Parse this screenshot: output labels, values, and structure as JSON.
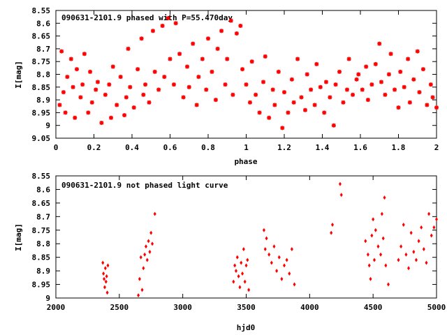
{
  "chart_data": [
    {
      "type": "scatter",
      "title": "090631-2101.9 phased with P=55.470day",
      "xlabel": "phase",
      "ylabel": "I[mag]",
      "xlim": [
        0,
        2
      ],
      "ylim": [
        8.55,
        9.05
      ],
      "y_inverted": true,
      "x_ticks": [
        "0",
        "0.2",
        "0.4",
        "0.6",
        "0.8",
        "1",
        "1.2",
        "1.4",
        "1.6",
        "1.8",
        "2"
      ],
      "y_ticks": [
        "8.55",
        "8.6",
        "8.65",
        "8.7",
        "8.75",
        "8.8",
        "8.85",
        "8.9",
        "8.95",
        "9",
        "9.05"
      ],
      "marker": "asterisk",
      "color": "#ff0000",
      "points": [
        [
          0.02,
          8.92
        ],
        [
          0.03,
          8.71
        ],
        [
          0.04,
          8.87
        ],
        [
          0.05,
          8.95
        ],
        [
          0.06,
          8.81
        ],
        [
          0.08,
          8.74
        ],
        [
          0.09,
          8.85
        ],
        [
          0.1,
          8.97
        ],
        [
          0.11,
          8.78
        ],
        [
          0.13,
          8.89
        ],
        [
          0.14,
          8.84
        ],
        [
          0.15,
          8.72
        ],
        [
          0.17,
          8.95
        ],
        [
          0.18,
          8.79
        ],
        [
          0.19,
          8.91
        ],
        [
          0.21,
          8.86
        ],
        [
          0.22,
          8.83
        ],
        [
          0.24,
          8.99
        ],
        [
          0.26,
          8.88
        ],
        [
          0.28,
          8.84
        ],
        [
          0.29,
          8.97
        ],
        [
          0.3,
          8.77
        ],
        [
          0.32,
          8.92
        ],
        [
          0.34,
          8.81
        ],
        [
          0.36,
          8.96
        ],
        [
          0.37,
          8.89
        ],
        [
          0.38,
          8.7
        ],
        [
          0.39,
          8.85
        ],
        [
          0.41,
          8.93
        ],
        [
          0.43,
          8.78
        ],
        [
          0.45,
          8.66
        ],
        [
          0.46,
          8.88
        ],
        [
          0.47,
          8.84
        ],
        [
          0.49,
          8.91
        ],
        [
          0.51,
          8.63
        ],
        [
          0.52,
          8.79
        ],
        [
          0.54,
          8.86
        ],
        [
          0.56,
          8.61
        ],
        [
          0.57,
          8.81
        ],
        [
          0.59,
          8.58
        ],
        [
          0.6,
          8.74
        ],
        [
          0.62,
          8.84
        ],
        [
          0.63,
          8.6
        ],
        [
          0.65,
          8.72
        ],
        [
          0.67,
          8.89
        ],
        [
          0.69,
          8.77
        ],
        [
          0.7,
          8.85
        ],
        [
          0.72,
          8.68
        ],
        [
          0.74,
          8.92
        ],
        [
          0.75,
          8.81
        ],
        [
          0.77,
          8.74
        ],
        [
          0.79,
          8.86
        ],
        [
          0.8,
          8.66
        ],
        [
          0.82,
          8.79
        ],
        [
          0.84,
          8.9
        ],
        [
          0.85,
          8.7
        ],
        [
          0.87,
          8.63
        ],
        [
          0.89,
          8.84
        ],
        [
          0.9,
          8.74
        ],
        [
          0.92,
          8.59
        ],
        [
          0.93,
          8.88
        ],
        [
          0.95,
          8.64
        ],
        [
          0.97,
          8.61
        ],
        [
          0.98,
          8.78
        ],
        [
          1.0,
          8.84
        ],
        [
          1.02,
          8.91
        ],
        [
          1.03,
          8.75
        ],
        [
          1.05,
          8.88
        ],
        [
          1.07,
          8.95
        ],
        [
          1.09,
          8.83
        ],
        [
          1.1,
          8.73
        ],
        [
          1.12,
          8.97
        ],
        [
          1.14,
          8.86
        ],
        [
          1.15,
          8.92
        ],
        [
          1.17,
          8.79
        ],
        [
          1.19,
          9.01
        ],
        [
          1.2,
          8.87
        ],
        [
          1.22,
          8.95
        ],
        [
          1.24,
          8.82
        ],
        [
          1.25,
          8.91
        ],
        [
          1.27,
          8.74
        ],
        [
          1.29,
          8.89
        ],
        [
          1.31,
          8.94
        ],
        [
          1.32,
          8.8
        ],
        [
          1.34,
          8.86
        ],
        [
          1.36,
          8.92
        ],
        [
          1.37,
          8.76
        ],
        [
          1.39,
          8.85
        ],
        [
          1.41,
          8.95
        ],
        [
          1.42,
          8.83
        ],
        [
          1.44,
          8.89
        ],
        [
          1.46,
          9.0
        ],
        [
          1.47,
          8.84
        ],
        [
          1.49,
          8.79
        ],
        [
          1.51,
          8.91
        ],
        [
          1.53,
          8.86
        ],
        [
          1.54,
          8.74
        ],
        [
          1.56,
          8.88
        ],
        [
          1.58,
          8.82
        ],
        [
          1.59,
          8.8
        ],
        [
          1.61,
          8.86
        ],
        [
          1.63,
          8.77
        ],
        [
          1.64,
          8.9
        ],
        [
          1.66,
          8.84
        ],
        [
          1.68,
          8.76
        ],
        [
          1.7,
          8.68
        ],
        [
          1.71,
          8.83
        ],
        [
          1.73,
          8.88
        ],
        [
          1.75,
          8.8
        ],
        [
          1.76,
          8.72
        ],
        [
          1.78,
          8.86
        ],
        [
          1.8,
          8.93
        ],
        [
          1.81,
          8.79
        ],
        [
          1.83,
          8.85
        ],
        [
          1.85,
          8.74
        ],
        [
          1.86,
          8.91
        ],
        [
          1.88,
          8.82
        ],
        [
          1.9,
          8.71
        ],
        [
          1.91,
          8.87
        ],
        [
          1.93,
          8.78
        ],
        [
          1.95,
          8.92
        ],
        [
          1.97,
          8.84
        ],
        [
          1.98,
          8.89
        ],
        [
          2.0,
          8.93
        ]
      ]
    },
    {
      "type": "scatter",
      "title": "090631-2101.9 not phased light curve",
      "xlabel": "hjd0",
      "ylabel": "I[mag]",
      "xlim": [
        2000,
        5000
      ],
      "ylim": [
        8.55,
        9.0
      ],
      "y_inverted": true,
      "x_ticks": [
        "2000",
        "2500",
        "3000",
        "3500",
        "4000",
        "4500",
        "5000"
      ],
      "y_ticks": [
        "8.55",
        "8.6",
        "8.65",
        "8.7",
        "8.75",
        "8.8",
        "8.85",
        "8.9",
        "8.95",
        "9"
      ],
      "marker": "diamond",
      "color": "#ff0000",
      "points": [
        [
          2370,
          8.87
        ],
        [
          2375,
          8.91
        ],
        [
          2380,
          8.93
        ],
        [
          2385,
          8.96
        ],
        [
          2390,
          8.89
        ],
        [
          2395,
          8.94
        ],
        [
          2400,
          8.92
        ],
        [
          2405,
          8.98
        ],
        [
          2410,
          8.88
        ],
        [
          2650,
          8.99
        ],
        [
          2660,
          8.93
        ],
        [
          2670,
          8.85
        ],
        [
          2680,
          8.97
        ],
        [
          2690,
          8.89
        ],
        [
          2700,
          8.84
        ],
        [
          2710,
          8.81
        ],
        [
          2720,
          8.86
        ],
        [
          2730,
          8.79
        ],
        [
          2740,
          8.83
        ],
        [
          2750,
          8.76
        ],
        [
          2760,
          8.8
        ],
        [
          2780,
          8.69
        ],
        [
          3400,
          8.94
        ],
        [
          3410,
          8.88
        ],
        [
          3420,
          8.9
        ],
        [
          3430,
          8.85
        ],
        [
          3440,
          8.92
        ],
        [
          3450,
          8.96
        ],
        [
          3460,
          8.87
        ],
        [
          3470,
          8.91
        ],
        [
          3480,
          8.82
        ],
        [
          3490,
          8.94
        ],
        [
          3500,
          8.88
        ],
        [
          3510,
          8.86
        ],
        [
          3520,
          8.97
        ],
        [
          3640,
          8.75
        ],
        [
          3650,
          8.82
        ],
        [
          3660,
          8.78
        ],
        [
          3680,
          8.84
        ],
        [
          3700,
          8.87
        ],
        [
          3720,
          8.81
        ],
        [
          3740,
          8.9
        ],
        [
          3760,
          8.85
        ],
        [
          3780,
          8.93
        ],
        [
          3800,
          8.88
        ],
        [
          3820,
          8.86
        ],
        [
          3840,
          8.91
        ],
        [
          3860,
          8.82
        ],
        [
          3880,
          8.95
        ],
        [
          4170,
          8.76
        ],
        [
          4180,
          8.73
        ],
        [
          4240,
          8.58
        ],
        [
          4250,
          8.62
        ],
        [
          4440,
          8.79
        ],
        [
          4460,
          8.84
        ],
        [
          4470,
          8.88
        ],
        [
          4480,
          8.93
        ],
        [
          4490,
          8.77
        ],
        [
          4500,
          8.71
        ],
        [
          4510,
          8.86
        ],
        [
          4520,
          8.75
        ],
        [
          4540,
          8.81
        ],
        [
          4560,
          8.84
        ],
        [
          4570,
          8.69
        ],
        [
          4580,
          8.78
        ],
        [
          4590,
          8.63
        ],
        [
          4600,
          8.88
        ],
        [
          4620,
          8.95
        ],
        [
          4700,
          8.86
        ],
        [
          4720,
          8.81
        ],
        [
          4740,
          8.73
        ],
        [
          4760,
          8.84
        ],
        [
          4780,
          8.89
        ],
        [
          4800,
          8.76
        ],
        [
          4820,
          8.83
        ],
        [
          4840,
          8.86
        ],
        [
          4860,
          8.79
        ],
        [
          4880,
          8.74
        ],
        [
          4900,
          8.82
        ],
        [
          4920,
          8.87
        ],
        [
          4940,
          8.69
        ],
        [
          4960,
          8.77
        ],
        [
          4980,
          8.74
        ],
        [
          5000,
          8.71
        ]
      ]
    }
  ]
}
